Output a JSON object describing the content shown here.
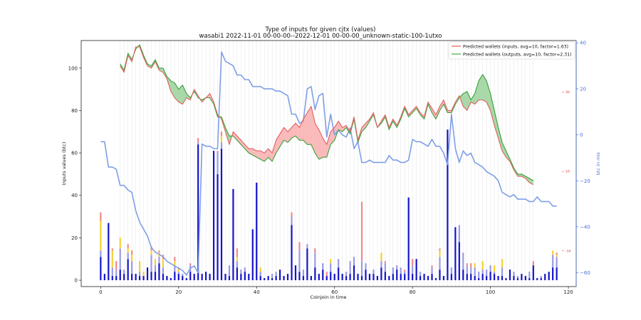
{
  "chart_data": {
    "type": "line",
    "title": "Type of inputs for given cjtx (values)",
    "subtitle": "wasabi1 2022-11-01 00-00-00--2022-12-01 00-00-00_unknown-static-100-1utxo",
    "xlabel": "Coinjoin in time",
    "ylabel": "Inputs values (btc)",
    "ylabel_right": "btc in mix",
    "xlim": [
      -5,
      122
    ],
    "ylim": [
      -3,
      113
    ],
    "ylim_right": [
      -66,
      41
    ],
    "ylim_red": [
      -19,
      43
    ],
    "x_ticks": [
      0,
      20,
      40,
      60,
      80,
      100,
      120
    ],
    "x_tick_labels": [
      "0",
      "20",
      "40",
      "60",
      "80",
      "100",
      "120"
    ],
    "y_ticks": [
      0,
      20,
      40,
      60,
      80,
      100
    ],
    "y_tick_labels": [
      "0",
      "20",
      "40",
      "60",
      "80",
      "100"
    ],
    "y_right_ticks": [
      40,
      20,
      0,
      -20,
      -40,
      -60
    ],
    "y_right_tick_labels": [
      "40",
      "20",
      "0",
      "−20",
      "−40",
      "−60"
    ],
    "y_red_ticks": [
      30,
      10,
      -10
    ],
    "y_red_tick_labels": [
      "30",
      "10",
      "-10"
    ],
    "legend_position": "top-right",
    "legend": [
      {
        "label": "Predicted wallets (inputs, avg=10, factor=1.63)",
        "color": "#e8726c"
      },
      {
        "label": "Predicted wallets (outputs, avg=10, factor=2.31)",
        "color": "#5cb85c"
      }
    ],
    "grid": "vertical lines at each coinjoin",
    "colors": {
      "bar_main": "#1414c8",
      "bar_light": "#9a9ae6",
      "bar_yellow": "#f5d033",
      "bar_red": "#f08a8a",
      "blue_line": "#7f9fe6",
      "red_line": "#e06060",
      "green_line": "#3aa03a",
      "fill_red": "#f88d8d",
      "fill_green": "#6fbf6f",
      "right_axis": "#4a6fd4"
    },
    "series": [
      {
        "name": "Predicted wallets (inputs, avg=10, factor=1.63)",
        "axis": "left",
        "x": [
          5,
          6,
          7,
          8,
          9,
          10,
          11,
          12,
          13,
          14,
          15,
          16,
          17,
          18,
          19,
          20,
          21,
          22,
          23,
          24,
          25,
          26,
          27,
          28,
          29,
          30,
          31,
          32,
          33,
          34,
          35,
          36,
          37,
          38,
          39,
          40,
          41,
          42,
          43,
          44,
          45,
          46,
          47,
          48,
          49,
          50,
          51,
          52,
          53,
          54,
          55,
          56,
          57,
          58,
          59,
          60,
          61,
          62,
          63,
          64,
          65,
          66,
          67,
          68,
          69,
          70,
          71,
          72,
          73,
          74,
          75,
          76,
          77,
          78,
          79,
          80,
          81,
          82,
          83,
          84,
          85,
          86,
          87,
          88,
          89,
          90,
          91,
          92,
          93,
          94,
          95,
          96,
          97,
          98,
          99,
          100,
          101,
          102,
          103,
          104,
          105,
          106,
          107,
          108,
          109,
          110,
          111
        ],
        "values": [
          101,
          98,
          106,
          103,
          110,
          110,
          105,
          101,
          100,
          103,
          99,
          98,
          95,
          89,
          86,
          84,
          83,
          86,
          85,
          90,
          87,
          84,
          86,
          88,
          84,
          78,
          76,
          70,
          64,
          70,
          68,
          66,
          64,
          62,
          62,
          61,
          61,
          60,
          62,
          60,
          66,
          69,
          72,
          70,
          72,
          74,
          72,
          76,
          79,
          82,
          74,
          71,
          67,
          64,
          70,
          72,
          75,
          72,
          73,
          70,
          77,
          66,
          72,
          74,
          76,
          79,
          72,
          75,
          78,
          72,
          76,
          73,
          77,
          82,
          78,
          80,
          82,
          79,
          77,
          84,
          81,
          78,
          82,
          85,
          80,
          80,
          84,
          87,
          82,
          80,
          84,
          83,
          85,
          85,
          84,
          80,
          73,
          67,
          61,
          58,
          56,
          52,
          49,
          49,
          48,
          46,
          45
        ]
      },
      {
        "name": "Predicted wallets (outputs, avg=10, factor=2.31)",
        "axis": "left",
        "x": [
          5,
          6,
          7,
          8,
          9,
          10,
          11,
          12,
          13,
          14,
          15,
          16,
          17,
          18,
          19,
          20,
          21,
          22,
          23,
          24,
          25,
          26,
          27,
          28,
          29,
          30,
          31,
          32,
          33,
          34,
          35,
          36,
          37,
          38,
          39,
          40,
          41,
          42,
          43,
          44,
          45,
          46,
          47,
          48,
          49,
          50,
          51,
          52,
          53,
          54,
          55,
          56,
          57,
          58,
          59,
          60,
          61,
          62,
          63,
          64,
          65,
          66,
          67,
          68,
          69,
          70,
          71,
          72,
          73,
          74,
          75,
          76,
          77,
          78,
          79,
          80,
          81,
          82,
          83,
          84,
          85,
          86,
          87,
          88,
          89,
          90,
          91,
          92,
          93,
          94,
          95,
          96,
          97,
          98,
          99,
          100,
          101,
          102,
          103,
          104,
          105,
          106,
          107,
          108,
          109,
          110,
          111
        ],
        "values": [
          102,
          99,
          107,
          104,
          109,
          111,
          106,
          102,
          101,
          104,
          100,
          100,
          96,
          94,
          93,
          90,
          92,
          88,
          86,
          89,
          86,
          85,
          86,
          86,
          83,
          77,
          77,
          72,
          68,
          68,
          66,
          64,
          62,
          60,
          59,
          58,
          57,
          56,
          58,
          56,
          60,
          63,
          66,
          65,
          67,
          68,
          66,
          66,
          64,
          64,
          60,
          57,
          58,
          58,
          64,
          66,
          71,
          70,
          72,
          69,
          76,
          65,
          70,
          72,
          75,
          78,
          72,
          74,
          77,
          71,
          75,
          72,
          76,
          81,
          77,
          79,
          81,
          78,
          76,
          83,
          79,
          76,
          80,
          83,
          79,
          79,
          83,
          86,
          88,
          89,
          85,
          88,
          94,
          97,
          94,
          88,
          80,
          72,
          65,
          61,
          57,
          53,
          50,
          50,
          49,
          48,
          47
        ]
      },
      {
        "name": "",
        "axis": "right",
        "x": [
          0,
          1,
          2,
          3,
          4,
          5,
          6,
          7,
          8,
          9,
          10,
          11,
          12,
          13,
          14,
          15,
          16,
          17,
          18,
          19,
          20,
          21,
          22,
          23,
          24,
          25,
          26,
          27,
          28,
          29,
          30,
          31,
          32,
          33,
          34,
          35,
          36,
          37,
          38,
          39,
          40,
          41,
          42,
          43,
          44,
          45,
          46,
          47,
          48,
          49,
          50,
          51,
          52,
          53,
          54,
          55,
          56,
          57,
          58,
          59,
          60,
          61,
          62,
          63,
          64,
          65,
          66,
          67,
          68,
          69,
          70,
          71,
          72,
          73,
          74,
          75,
          76,
          77,
          78,
          79,
          80,
          81,
          82,
          83,
          84,
          85,
          86,
          87,
          88,
          89,
          90,
          91,
          92,
          93,
          94,
          95,
          96,
          97,
          98,
          99,
          100,
          101,
          102,
          103,
          104,
          105,
          106,
          107,
          108,
          109,
          110,
          111,
          112,
          113,
          114,
          115,
          116,
          117
        ],
        "values": [
          -3,
          -3,
          -14,
          -14,
          -15,
          -22,
          -22,
          -24,
          -25,
          -33,
          -38,
          -41,
          -44,
          -49,
          -51,
          -52,
          -53,
          -55,
          -56,
          -57,
          -58,
          -59,
          -61,
          -58,
          -57,
          -60,
          -4,
          -5,
          -5,
          -6,
          -6,
          36,
          32,
          31,
          30,
          26,
          26,
          24,
          24,
          21,
          21,
          21,
          20,
          20,
          20,
          19,
          19,
          18,
          17,
          9,
          9,
          5,
          6,
          20,
          21,
          11,
          17,
          18,
          -1,
          9,
          0,
          2,
          0,
          -1,
          3,
          -6,
          -3,
          -12,
          -12,
          -11,
          -12,
          -12,
          -12,
          -12,
          -9,
          -11,
          -11,
          -12,
          -12,
          -11,
          -2,
          -3,
          -3,
          -4,
          -5,
          -2,
          -5,
          -5,
          -8,
          -13,
          9,
          -6,
          -12,
          -7,
          -9,
          -8,
          -12,
          -13,
          -14,
          -16,
          -17,
          -18,
          -20,
          -25,
          -26,
          -27,
          -26,
          -28,
          -28,
          -28,
          -29,
          -29,
          -27,
          -29,
          -29,
          -29,
          -31,
          -31
        ]
      }
    ],
    "bars": {
      "x": [
        0,
        1,
        2,
        3,
        4,
        5,
        6,
        7,
        8,
        9,
        10,
        11,
        12,
        13,
        14,
        15,
        16,
        17,
        18,
        19,
        20,
        21,
        22,
        23,
        24,
        25,
        26,
        27,
        28,
        29,
        30,
        31,
        32,
        33,
        34,
        35,
        36,
        37,
        38,
        39,
        40,
        41,
        42,
        43,
        44,
        45,
        46,
        47,
        48,
        49,
        50,
        51,
        52,
        53,
        54,
        55,
        56,
        57,
        58,
        59,
        60,
        61,
        62,
        63,
        64,
        65,
        66,
        67,
        68,
        69,
        70,
        71,
        72,
        73,
        74,
        75,
        76,
        77,
        78,
        79,
        80,
        81,
        82,
        83,
        84,
        85,
        86,
        87,
        88,
        89,
        90,
        91,
        92,
        93,
        94,
        95,
        96,
        97,
        98,
        99,
        100,
        101,
        102,
        103,
        104,
        105,
        106,
        107,
        108,
        109,
        110,
        111,
        112,
        113,
        114,
        115,
        116,
        117
      ],
      "blue": [
        11,
        3,
        27,
        2,
        2,
        5,
        3,
        10,
        3,
        3,
        2,
        2,
        6,
        4,
        4,
        8,
        3,
        2,
        1,
        4,
        3,
        2,
        1,
        4,
        3,
        64,
        3,
        4,
        3,
        61,
        50,
        62,
        3,
        2,
        43,
        6,
        3,
        4,
        3,
        24,
        46,
        2,
        1,
        2,
        1,
        2,
        5,
        2,
        3,
        26,
        7,
        4,
        2,
        15,
        2,
        6,
        3,
        5,
        2,
        4,
        3,
        6,
        3,
        2,
        3,
        7,
        3,
        2,
        5,
        3,
        3,
        2,
        6,
        4,
        2,
        3,
        5,
        3,
        3,
        39,
        3,
        10,
        2,
        3,
        2,
        3,
        1,
        5,
        2,
        71,
        3,
        25,
        18,
        5,
        3,
        3,
        2,
        1,
        3,
        2,
        4,
        3,
        2,
        2,
        1,
        5,
        2,
        1,
        3,
        2,
        1,
        7,
        1,
        1,
        3,
        4,
        6,
        6
      ],
      "light": [
        3,
        0,
        0,
        4,
        3,
        10,
        2,
        3,
        6,
        0,
        2,
        0,
        0,
        8,
        3,
        3,
        3,
        0,
        0,
        3,
        1,
        1,
        0,
        3,
        0,
        1,
        0,
        0,
        0,
        0,
        10,
        3,
        0,
        5,
        0,
        3,
        2,
        2,
        0,
        0,
        0,
        2,
        0,
        0,
        2,
        2,
        0,
        0,
        0,
        4,
        0,
        10,
        3,
        2,
        0,
        7,
        0,
        3,
        0,
        4,
        0,
        4,
        0,
        2,
        6,
        4,
        0,
        7,
        3,
        0,
        2,
        0,
        3,
        4,
        0,
        3,
        2,
        3,
        1,
        0,
        4,
        0,
        2,
        0,
        0,
        3,
        0,
        6,
        0,
        0,
        3,
        0,
        8,
        8,
        4,
        3,
        4,
        3,
        2,
        3,
        3,
        1,
        0,
        4,
        0,
        0,
        2,
        1,
        0,
        0,
        3,
        0,
        0,
        1,
        0,
        0,
        6,
        5
      ],
      "yellow": [
        14,
        0,
        0,
        8,
        0,
        5,
        0,
        2,
        3,
        0,
        5,
        2,
        0,
        2,
        3,
        2,
        4,
        0,
        0,
        2,
        1,
        0,
        0,
        0,
        0,
        0,
        0,
        0,
        0,
        0,
        0,
        3,
        0,
        0,
        0,
        2,
        0,
        0,
        0,
        0,
        0,
        2,
        0,
        0,
        0,
        0,
        0,
        0,
        0,
        0,
        0,
        0,
        0,
        0,
        0,
        0,
        0,
        0,
        0,
        2,
        0,
        0,
        0,
        0,
        0,
        0,
        0,
        0,
        0,
        0,
        0,
        0,
        4,
        0,
        0,
        0,
        0,
        0,
        0,
        0,
        0,
        0,
        0,
        0,
        0,
        0,
        0,
        3,
        0,
        0,
        0,
        0,
        0,
        0,
        0,
        0,
        2,
        0,
        4,
        0,
        0,
        3,
        0,
        4,
        0,
        0,
        0,
        0,
        0,
        0,
        0,
        0,
        0,
        0,
        0,
        0,
        2,
        1
      ],
      "red": [
        4,
        0,
        0,
        1,
        4,
        0,
        0,
        2,
        2,
        0,
        0,
        0,
        0,
        2,
        0,
        1,
        2,
        0,
        0,
        2,
        1,
        0,
        0,
        1,
        0,
        2,
        0,
        0,
        0,
        0,
        1,
        2,
        0,
        0,
        0,
        4,
        0,
        0,
        0,
        0,
        0,
        0,
        0,
        0,
        0,
        0,
        0,
        0,
        0,
        2,
        0,
        4,
        0,
        0,
        0,
        2,
        0,
        0,
        2,
        0,
        0,
        0,
        0,
        0,
        0,
        0,
        0,
        28,
        0,
        0,
        0,
        0,
        0,
        1,
        0,
        0,
        0,
        0,
        1,
        0,
        3,
        0,
        0,
        0,
        0,
        1,
        0,
        1,
        0,
        0,
        0,
        0,
        0,
        0,
        1,
        2,
        0,
        0,
        0,
        0,
        0,
        0,
        0,
        0,
        0,
        0,
        0,
        0,
        0,
        0,
        0,
        2,
        0,
        0,
        0,
        0,
        0,
        1
      ]
    }
  }
}
